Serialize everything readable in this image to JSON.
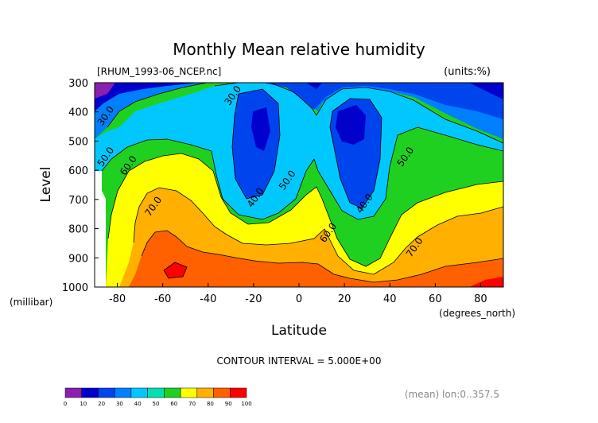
{
  "chart_data": {
    "type": "contour",
    "title": "Monthly Mean relative humidity",
    "file_label": "[RHUM_1993-06_NCEP.nc]",
    "units_label": "(units:%)",
    "xlabel": "Latitude",
    "x_units": "(degrees_north)",
    "ylabel": "Level",
    "y_units": "(millibar)",
    "xlim": [
      -90,
      90
    ],
    "ylim": [
      1000,
      300
    ],
    "x_ticks": [
      -80,
      -60,
      -40,
      -20,
      0,
      20,
      40,
      60,
      80
    ],
    "y_ticks": [
      300,
      400,
      500,
      600,
      700,
      800,
      900,
      1000
    ],
    "contour_interval": "CONTOUR INTERVAL = 5.000E+00",
    "footer_note": "(mean) lon:0..357.5",
    "colorbar": {
      "levels": [
        0,
        10,
        20,
        30,
        40,
        50,
        60,
        70,
        80,
        90,
        100
      ],
      "colors": [
        "#8a1fb0",
        "#0000cc",
        "#0044ee",
        "#0080ff",
        "#00c8ff",
        "#00e0b0",
        "#20d020",
        "#ffff00",
        "#ffb000",
        "#ff6000",
        "#ff0000"
      ]
    },
    "contour_labels": [
      {
        "text": "30.0",
        "lat": -84,
        "lev": 420
      },
      {
        "text": "30.0",
        "lat": -28,
        "lev": 350
      },
      {
        "text": "50.0",
        "lat": -84,
        "lev": 560
      },
      {
        "text": "60.0",
        "lat": -74,
        "lev": 590
      },
      {
        "text": "70.0",
        "lat": -63,
        "lev": 730
      },
      {
        "text": "40.0",
        "lat": -18,
        "lev": 700
      },
      {
        "text": "50.0",
        "lat": -4,
        "lev": 640
      },
      {
        "text": "60.0",
        "lat": 14,
        "lev": 820
      },
      {
        "text": "40.0",
        "lat": 30,
        "lev": 720
      },
      {
        "text": "50.0",
        "lat": 48,
        "lev": 560
      },
      {
        "text": "70.0",
        "lat": 52,
        "lev": 870
      }
    ]
  }
}
